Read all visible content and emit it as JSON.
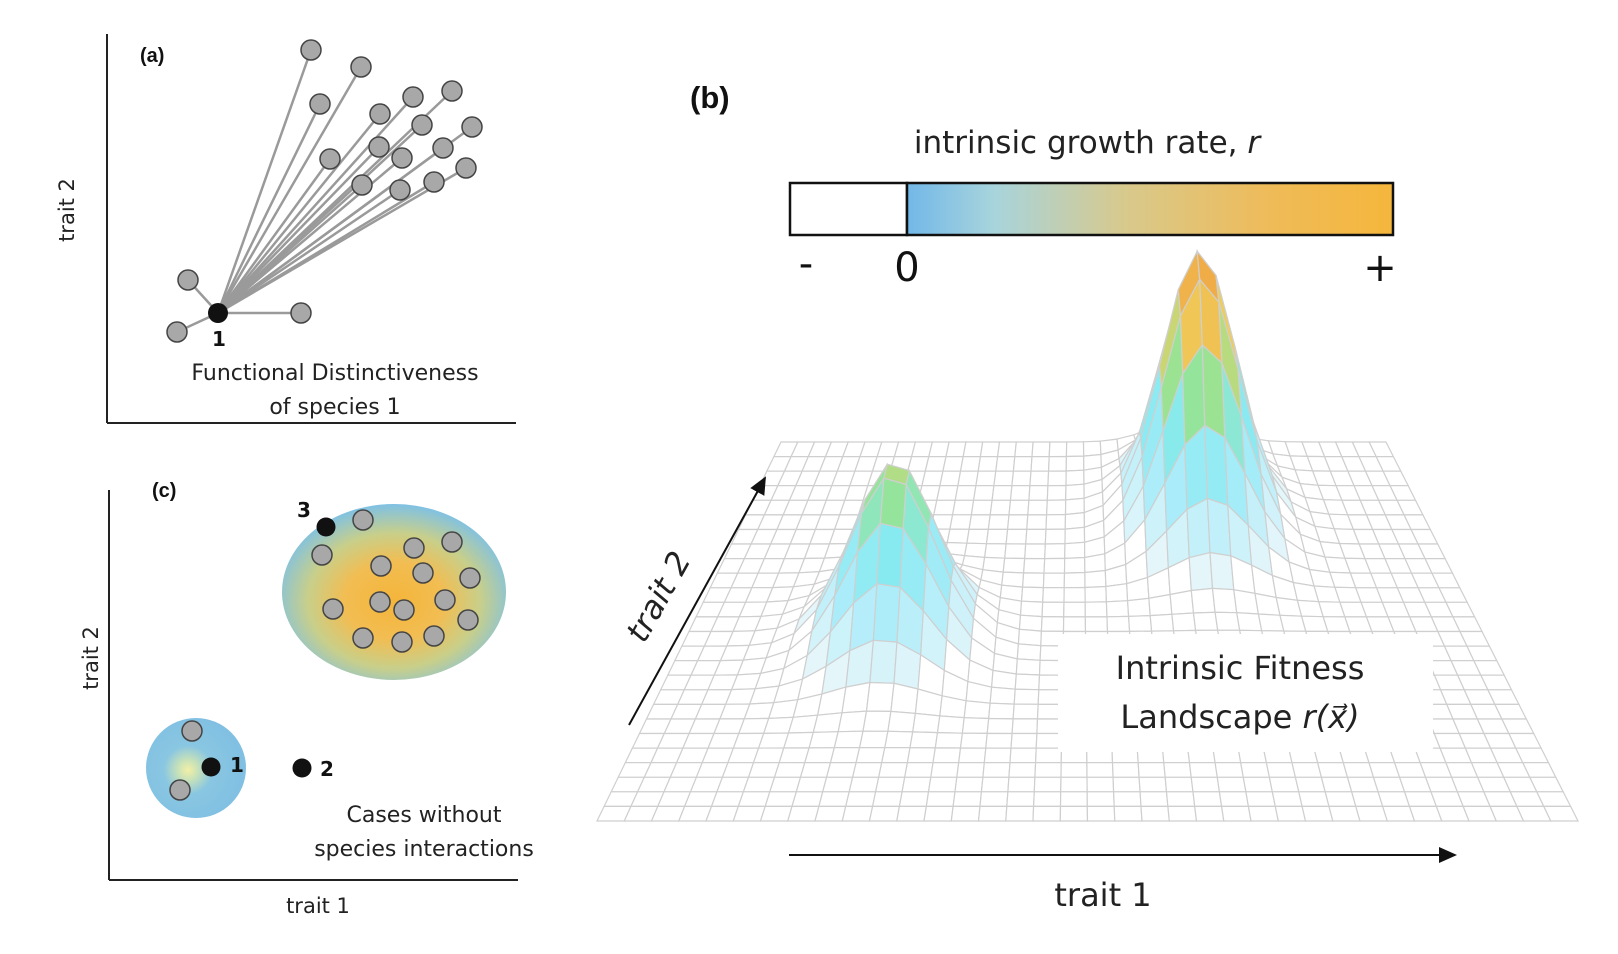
{
  "panel_a": {
    "label": "(a)",
    "y_axis_label": "trait 2",
    "focal_species": "1",
    "caption_line1": "Functional Distinctiveness",
    "caption_line2": "of species 1"
  },
  "panel_c": {
    "label": "(c)",
    "y_axis_label": "trait 2",
    "x_axis_label": "trait 1",
    "species_1": "1",
    "species_2": "2",
    "species_3": "3",
    "caption_line1": "Cases without",
    "caption_line2": "species interactions"
  },
  "panel_b": {
    "label": "(b)",
    "colorbar_title": "intrinsic growth rate, ",
    "colorbar_title_var": "r",
    "colorbar_minus": "-",
    "colorbar_zero": "0",
    "colorbar_plus": "+",
    "trait2_label": "trait 2",
    "trait1_label": "trait 1",
    "landscape_line1": "Intrinsic Fitness",
    "landscape_line2_prefix": "Landscape ",
    "landscape_line2_var": "r(x⃗)"
  },
  "colors": {
    "node_gray": "#a8a8a8",
    "node_black": "#111111",
    "link_gray": "#9a9a9a",
    "blue": "#7fc0e6",
    "orange": "#f3b63f",
    "mesh": "#cfcfcf"
  }
}
